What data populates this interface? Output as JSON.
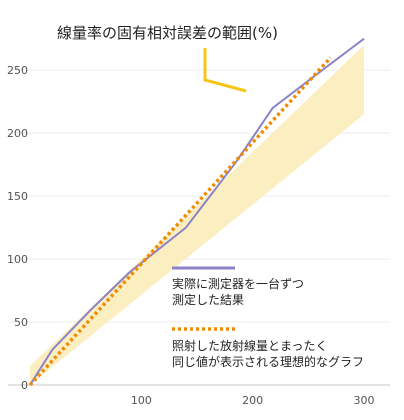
{
  "chart_data": {
    "type": "line",
    "title": "線量率の固有相対誤差の範囲(%)",
    "xlabel": "",
    "ylabel": "",
    "xlim": [
      0,
      300
    ],
    "ylim": [
      0,
      270
    ],
    "x_ticks": [
      100,
      200,
      300
    ],
    "y_ticks": [
      0,
      50,
      100,
      150,
      200,
      250
    ],
    "grid": true,
    "band": {
      "color": "#fbeec0",
      "upper": [
        [
          0,
          15
        ],
        [
          300,
          285
        ]
      ],
      "lower": [
        [
          0,
          -5
        ],
        [
          300,
          215
        ]
      ]
    },
    "series": [
      {
        "id": "measured",
        "color": "#8c82c8",
        "style": "solid",
        "legend_lines": [
          "実際に測定器を一台ずつ",
          "測定した結果"
        ],
        "x": [
          0,
          20,
          55,
          90,
          140,
          185,
          218,
          255,
          300
        ],
        "y": [
          0,
          28,
          60,
          90,
          125,
          177,
          220,
          245,
          275
        ]
      },
      {
        "id": "ideal",
        "color": "#f08a00",
        "style": "dotted",
        "legend_lines": [
          "照射した放射線量とまったく",
          "同じ値が表示される理想的なグラフ"
        ],
        "x": [
          0,
          270
        ],
        "y": [
          0,
          260
        ]
      }
    ]
  }
}
